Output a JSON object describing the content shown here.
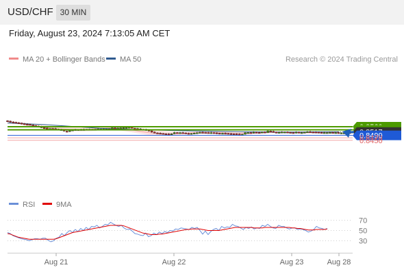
{
  "header": {
    "symbol": "USD/CHF",
    "timeframe": "30 MIN"
  },
  "timestamp": "Friday, August 23, 2024 7:13:05 AM CET",
  "colors": {
    "accent_green": "#4c9a00",
    "support_blue": "#1f5ad6",
    "support_red": "#e06060",
    "ma50": "#2f5a8f",
    "bollinger_fill": "#fdd9d9",
    "rsi": "#6b8fd8",
    "rsi_ma": "#e00000"
  },
  "chart_data": [
    {
      "type": "candlestick",
      "legend": [
        {
          "label": "MA 20 + Bollinger Bands",
          "color": "#f08a8a"
        },
        {
          "label": "MA 50",
          "color": "#2f5a8f"
        }
      ],
      "credit": "Research © 2024 Trading Central",
      "x_ticks": [
        "Aug 21",
        "Aug 22",
        "Aug 23",
        "Aug 28"
      ],
      "close_series": [
        0.8605,
        0.8598,
        0.8596,
        0.8592,
        0.859,
        0.8585,
        0.8581,
        0.858,
        0.8574,
        0.857,
        0.8565,
        0.856,
        0.8553,
        0.8549,
        0.8545,
        0.8545,
        0.8544,
        0.854,
        0.8537,
        0.8537,
        0.8524,
        0.8521,
        0.853,
        0.8534,
        0.8537,
        0.8537,
        0.8538,
        0.8538,
        0.8539,
        0.8539,
        0.8539,
        0.8538,
        0.8541,
        0.8539,
        0.8541,
        0.8542,
        0.8542,
        0.8551,
        0.8549,
        0.8549,
        0.8551,
        0.8553,
        0.8554,
        0.8556,
        0.8548,
        0.8545,
        0.8542,
        0.8539,
        0.8538,
        0.8533,
        0.8526,
        0.8516,
        0.851,
        0.8508,
        0.8506,
        0.8503,
        0.8501,
        0.85,
        0.8503,
        0.8513,
        0.8508,
        0.8512,
        0.851,
        0.8506,
        0.8504,
        0.8506,
        0.8509,
        0.8511,
        0.8515,
        0.8514,
        0.8513,
        0.8512,
        0.8512,
        0.851,
        0.8508,
        0.8505,
        0.8507,
        0.8506,
        0.8504,
        0.8503,
        0.8502,
        0.85,
        0.8497,
        0.8499,
        0.8511,
        0.8513,
        0.8509,
        0.8516,
        0.8514,
        0.8513,
        0.8518,
        0.8512,
        0.8525,
        0.8522,
        0.8516,
        0.8512,
        0.8515,
        0.8517,
        0.8517,
        0.8515,
        0.8513,
        0.8511,
        0.8516,
        0.8513,
        0.8513,
        0.8516,
        0.852,
        0.8518,
        0.8517,
        0.8516,
        0.8514,
        0.8511,
        0.8513,
        0.8513,
        0.8514,
        0.8511,
        0.8513,
        0.851,
        0.851,
        0.851,
        0.8513,
        0.8512,
        0.8517
      ],
      "ma50": [
        0.859,
        0.8584,
        0.8577,
        0.8568,
        0.8557,
        0.8548,
        0.8542,
        0.8537,
        0.8533,
        0.8529,
        0.8526,
        0.8524,
        0.8521,
        0.8519,
        0.8517,
        0.8516,
        0.8517,
        0.8519,
        0.852
      ],
      "ma20": [
        0.8602,
        0.859,
        0.8576,
        0.8563,
        0.8551,
        0.8543,
        0.8539,
        0.8538,
        0.854,
        0.8546,
        0.8549,
        0.8544,
        0.8534,
        0.852,
        0.8508,
        0.8503,
        0.8503,
        0.8507,
        0.8511,
        0.8512,
        0.8512,
        0.851,
        0.8506,
        0.8506,
        0.8509,
        0.8512,
        0.8515,
        0.8514,
        0.8512,
        0.8511,
        0.8512,
        0.8513,
        0.8514
      ],
      "bb_upper": [
        0.8612,
        0.86,
        0.8589,
        0.8576,
        0.8565,
        0.8558,
        0.8554,
        0.8554,
        0.8556,
        0.8563,
        0.8564,
        0.8562,
        0.8555,
        0.8547,
        0.8537,
        0.8526,
        0.852,
        0.8516,
        0.8519,
        0.8525,
        0.8525,
        0.8521,
        0.8517,
        0.8516,
        0.8518,
        0.8521,
        0.8524,
        0.8523,
        0.8521,
        0.8519,
        0.852,
        0.852,
        0.8522
      ],
      "bb_lower": [
        0.8594,
        0.858,
        0.8565,
        0.8551,
        0.8538,
        0.853,
        0.8526,
        0.8523,
        0.8524,
        0.8531,
        0.8535,
        0.8528,
        0.8515,
        0.85,
        0.8488,
        0.8487,
        0.8489,
        0.8496,
        0.8502,
        0.8502,
        0.8503,
        0.85,
        0.8496,
        0.8496,
        0.85,
        0.8505,
        0.8508,
        0.8507,
        0.8505,
        0.8504,
        0.8505,
        0.8506,
        0.8507
      ],
      "levels": [
        {
          "value": 0.856,
          "label": "0.8560",
          "kind": "resistance"
        },
        {
          "value": 0.8535,
          "label": "0.8535",
          "kind": "resistance"
        },
        {
          "value": 0.8517,
          "label": "0.8517",
          "kind": "last"
        },
        {
          "value": 0.849,
          "label": "0.8490",
          "kind": "support"
        },
        {
          "value": 0.847,
          "label": "0.8470",
          "kind": "weak_support"
        },
        {
          "value": 0.845,
          "label": "0.8450",
          "kind": "weak_support"
        }
      ],
      "forecast_arrow": {
        "from": 0.8517,
        "to": 0.856
      }
    },
    {
      "type": "line",
      "legend": [
        {
          "label": "RSI",
          "color": "#6b8fd8"
        },
        {
          "label": "9MA",
          "color": "#e00000"
        }
      ],
      "y_ticks": [
        70,
        50,
        30
      ],
      "rsi": [
        46,
        44,
        40,
        38,
        36,
        34,
        33,
        32,
        30,
        32,
        34,
        34,
        33,
        35,
        35,
        31,
        28,
        30,
        35,
        37,
        44,
        40,
        46,
        50,
        46,
        52,
        48,
        54,
        50,
        56,
        52,
        58,
        57,
        60,
        55,
        58,
        62,
        61,
        66,
        63,
        60,
        58,
        60,
        55,
        52,
        53,
        49,
        44,
        43,
        41,
        40,
        45,
        38,
        40,
        45,
        42,
        47,
        44,
        48,
        46,
        50,
        49,
        53,
        52,
        55,
        54,
        53,
        52,
        56,
        54,
        56,
        50,
        43,
        49,
        42,
        48,
        52,
        54,
        50,
        58,
        55,
        57,
        56,
        62,
        59,
        58,
        55,
        52,
        56,
        54,
        57,
        53,
        55,
        54,
        60,
        58,
        62,
        58,
        55,
        54,
        60,
        58,
        58,
        55,
        53,
        55,
        55,
        52,
        53,
        52,
        50,
        47,
        49,
        52,
        58,
        55,
        54,
        52,
        54
      ],
      "ma9": [
        44,
        43,
        41,
        39,
        37,
        36,
        35,
        34,
        33,
        33,
        33,
        33,
        33,
        33,
        33,
        33,
        33,
        33,
        34,
        36,
        38,
        40,
        42,
        44,
        46,
        47,
        48,
        49,
        50,
        51,
        52,
        53,
        54,
        55,
        56,
        57,
        58,
        59,
        60,
        60,
        60,
        60,
        60,
        59,
        57,
        55,
        53,
        51,
        49,
        47,
        45,
        44,
        43,
        42,
        42,
        42,
        43,
        43,
        44,
        45,
        46,
        47,
        48,
        49,
        50,
        51,
        52,
        52,
        53,
        53,
        53,
        53,
        52,
        51,
        50,
        50,
        50,
        50,
        50,
        51,
        52,
        53,
        54,
        55,
        56,
        56,
        56,
        56,
        56,
        56,
        56,
        55,
        55,
        55,
        55,
        56,
        56,
        56,
        56,
        56,
        56,
        56,
        56,
        56,
        56,
        55,
        55,
        54,
        54,
        53,
        52,
        51,
        51,
        51,
        52,
        52,
        52,
        52,
        53
      ]
    }
  ]
}
